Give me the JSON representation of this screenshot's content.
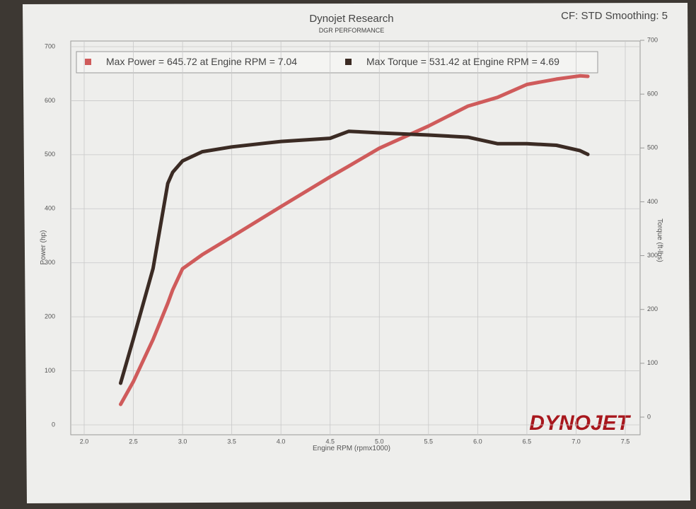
{
  "chart_data": {
    "type": "line",
    "title": "Dynojet Research",
    "subtitle": "DGR PERFORMANCE",
    "note": "CF: STD Smoothing: 5",
    "logo": "DYNOJET",
    "x_label": "Engine RPM (rpmx1000)",
    "y_label": "Power (hp)",
    "y2_label": "Torque (ft-lbs)",
    "x": [
      2.37,
      2.5,
      2.7,
      2.85,
      2.9,
      3.0,
      3.2,
      3.5,
      4.0,
      4.5,
      4.69,
      5.0,
      5.5,
      5.9,
      6.2,
      6.5,
      6.8,
      7.04,
      7.12
    ],
    "series": [
      {
        "name": "Max Power = 645.72 at Engine RPM = 7.04",
        "color": "#cf5b5b",
        "axis": "y",
        "values": [
          38,
          80,
          158,
          225,
          250,
          289,
          315,
          348,
          404,
          459,
          479,
          512,
          553,
          590,
          606,
          630,
          640,
          646,
          645
        ]
      },
      {
        "name": "Max Torque = 531.42 at Engine RPM = 4.69",
        "color": "#3b2b24",
        "axis": "y2",
        "values": [
          63,
          145,
          276,
          434,
          455,
          476,
          493,
          502,
          512,
          518,
          531,
          528,
          524,
          520,
          508,
          508,
          505,
          495,
          488
        ]
      }
    ],
    "xlim": [
      2.0,
      7.5
    ],
    "xticks": [
      {
        "value": 2,
        "label": "2.0"
      },
      2.5,
      {
        "value": 3,
        "label": "3.0"
      },
      3.5,
      {
        "value": 4,
        "label": "4.0"
      },
      4.5,
      {
        "value": 5,
        "label": "5.0"
      },
      5.5,
      {
        "value": 6,
        "label": "6.0"
      },
      6.5,
      {
        "value": 7,
        "label": "7.0"
      },
      7.5
    ],
    "ylim": [
      0,
      700
    ],
    "yticks": [
      0,
      100,
      200,
      300,
      400,
      500,
      600,
      700
    ],
    "y2lim": [
      0,
      700
    ],
    "y2ticks": [
      0,
      100,
      200,
      300,
      400,
      500,
      600,
      700
    ],
    "grid": true
  }
}
